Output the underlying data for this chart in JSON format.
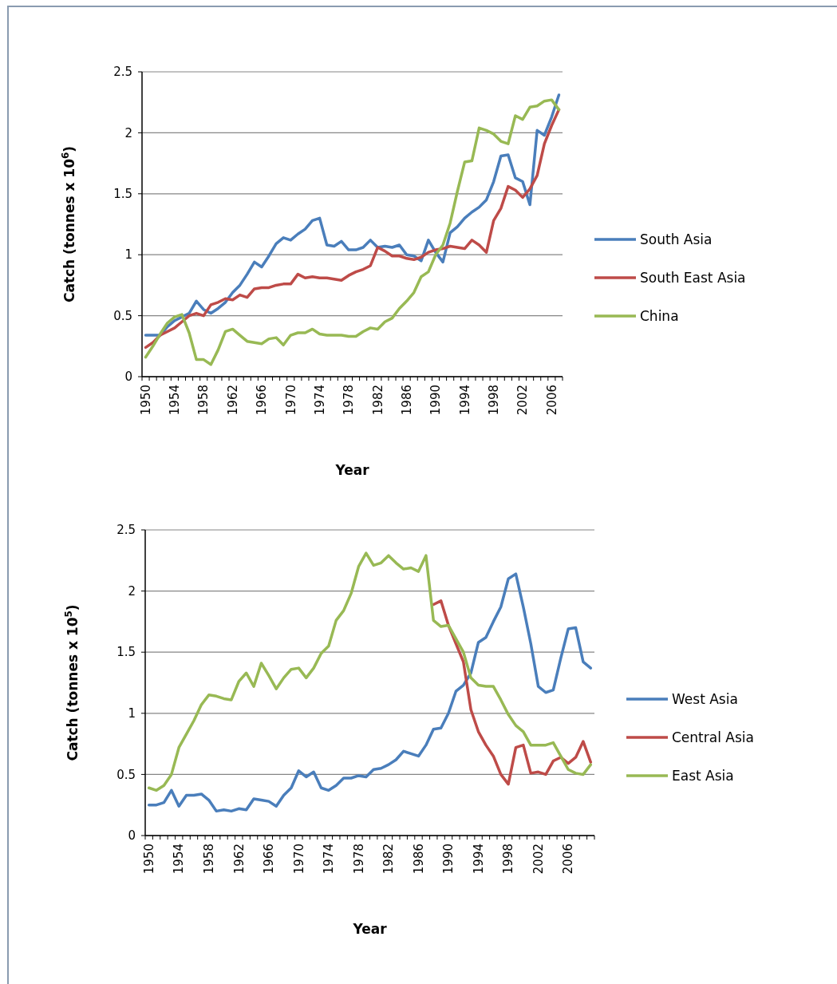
{
  "chart_data": [
    {
      "type": "line",
      "xlabel": "Year",
      "ylabel": "Catch (tonnes x 10$^{6}$)",
      "ylim": [
        0,
        2.5
      ],
      "yticks": [
        0,
        0.5,
        1,
        1.5,
        2,
        2.5
      ],
      "grid": "y",
      "legend": "right",
      "categories": [
        "1950",
        null,
        null,
        null,
        "1954",
        null,
        null,
        null,
        "1958",
        null,
        null,
        null,
        "1962",
        null,
        null,
        null,
        "1966",
        null,
        null,
        null,
        "1970",
        null,
        null,
        null,
        "1974",
        null,
        null,
        null,
        "1978",
        null,
        null,
        null,
        "1982",
        null,
        null,
        null,
        "1986",
        null,
        null,
        null,
        "1990",
        null,
        null,
        null,
        "1994",
        null,
        null,
        null,
        "1998",
        null,
        null,
        null,
        "2002",
        null,
        null,
        null,
        "2006",
        null
      ],
      "series": [
        {
          "name": "South Asia",
          "color": "#4a7ebb",
          "values": [
            0.34,
            0.34,
            0.34,
            0.41,
            0.46,
            0.49,
            0.52,
            0.62,
            0.55,
            0.52,
            0.56,
            0.61,
            0.69,
            0.75,
            0.84,
            0.94,
            0.9,
            0.99,
            1.09,
            1.14,
            1.12,
            1.17,
            1.21,
            1.28,
            1.3,
            1.08,
            1.07,
            1.11,
            1.04,
            1.04,
            1.06,
            1.12,
            1.06,
            1.07,
            1.06,
            1.08,
            1.0,
            0.99,
            0.95,
            1.12,
            1.02,
            0.94,
            1.18,
            1.23,
            1.3,
            1.35,
            1.39,
            1.45,
            1.6,
            1.81,
            1.82,
            1.63,
            1.6,
            1.41,
            2.02,
            1.98,
            2.13,
            2.31
          ]
        },
        {
          "name": "South East Asia",
          "color": "#be4b48",
          "values": [
            0.24,
            0.28,
            0.34,
            0.37,
            0.4,
            0.45,
            0.5,
            0.52,
            0.5,
            0.59,
            0.61,
            0.64,
            0.63,
            0.67,
            0.65,
            0.72,
            0.73,
            0.73,
            0.75,
            0.76,
            0.76,
            0.84,
            0.81,
            0.82,
            0.81,
            0.81,
            0.8,
            0.79,
            0.83,
            0.86,
            0.88,
            0.91,
            1.06,
            1.03,
            0.99,
            0.99,
            0.97,
            0.96,
            0.98,
            1.02,
            1.04,
            1.05,
            1.07,
            1.06,
            1.05,
            1.12,
            1.08,
            1.02,
            1.28,
            1.38,
            1.56,
            1.53,
            1.47,
            1.54,
            1.65,
            1.91,
            2.06,
            2.19
          ]
        },
        {
          "name": "China",
          "color": "#98b954",
          "values": [
            0.16,
            0.25,
            0.35,
            0.44,
            0.49,
            0.51,
            0.36,
            0.14,
            0.14,
            0.1,
            0.22,
            0.37,
            0.39,
            0.34,
            0.29,
            0.28,
            0.27,
            0.31,
            0.32,
            0.26,
            0.34,
            0.36,
            0.36,
            0.39,
            0.35,
            0.34,
            0.34,
            0.34,
            0.33,
            0.33,
            0.37,
            0.4,
            0.39,
            0.45,
            0.48,
            0.56,
            0.62,
            0.69,
            0.82,
            0.86,
            1.0,
            1.08,
            1.26,
            1.52,
            1.76,
            1.77,
            2.04,
            2.02,
            1.99,
            1.93,
            1.91,
            2.14,
            2.11,
            2.21,
            2.22,
            2.26,
            2.27,
            2.19
          ]
        }
      ]
    },
    {
      "type": "line",
      "xlabel": "Year",
      "ylabel": "Catch (tonnes x 10$^{5}$)",
      "ylim": [
        0,
        2.5
      ],
      "yticks": [
        0,
        0.5,
        1,
        1.5,
        2,
        2.5
      ],
      "grid": "y",
      "legend": "right",
      "categories": [
        "1950",
        null,
        null,
        null,
        "1954",
        null,
        null,
        null,
        "1958",
        null,
        null,
        null,
        "1962",
        null,
        null,
        null,
        "1966",
        null,
        null,
        null,
        "1970",
        null,
        null,
        null,
        "1974",
        null,
        null,
        null,
        "1978",
        null,
        null,
        null,
        "1982",
        null,
        null,
        null,
        "1986",
        null,
        null,
        null,
        "1990",
        null,
        null,
        null,
        "1994",
        null,
        null,
        null,
        "1998",
        null,
        null,
        null,
        "2002",
        null,
        null,
        null,
        "2006",
        null,
        null,
        null
      ],
      "series": [
        {
          "name": "West Asia",
          "color": "#4a7ebb",
          "values": [
            0.25,
            0.25,
            0.27,
            0.37,
            0.24,
            0.33,
            0.33,
            0.34,
            0.29,
            0.2,
            0.21,
            0.2,
            0.22,
            0.21,
            0.3,
            0.29,
            0.28,
            0.24,
            0.33,
            0.39,
            0.53,
            0.48,
            0.52,
            0.39,
            0.37,
            0.41,
            0.47,
            0.47,
            0.49,
            0.48,
            0.54,
            0.55,
            0.58,
            0.62,
            0.69,
            0.67,
            0.65,
            0.74,
            0.87,
            0.88,
            1.0,
            1.18,
            1.23,
            1.33,
            1.58,
            1.62,
            1.75,
            1.87,
            2.1,
            2.14,
            1.87,
            1.57,
            1.22,
            1.17,
            1.19,
            1.45,
            1.69,
            1.7,
            1.42,
            1.37
          ]
        },
        {
          "name": "Central Asia",
          "color": "#be4b48",
          "values": [
            null,
            null,
            null,
            null,
            null,
            null,
            null,
            null,
            null,
            null,
            null,
            null,
            null,
            null,
            null,
            null,
            null,
            null,
            null,
            null,
            null,
            null,
            null,
            null,
            null,
            null,
            null,
            null,
            null,
            null,
            null,
            null,
            null,
            null,
            null,
            null,
            null,
            null,
            1.89,
            1.92,
            1.72,
            1.57,
            1.42,
            1.03,
            0.85,
            0.74,
            0.65,
            0.5,
            0.42,
            0.72,
            0.74,
            0.51,
            0.52,
            0.5,
            0.61,
            0.64,
            0.59,
            0.64,
            0.77,
            0.6
          ]
        },
        {
          "name": "East Asia",
          "color": "#98b954",
          "values": [
            0.39,
            0.37,
            0.41,
            0.5,
            0.72,
            0.83,
            0.94,
            1.07,
            1.15,
            1.14,
            1.12,
            1.11,
            1.26,
            1.33,
            1.22,
            1.41,
            1.31,
            1.2,
            1.29,
            1.36,
            1.37,
            1.29,
            1.37,
            1.49,
            1.55,
            1.76,
            1.84,
            1.98,
            2.2,
            2.31,
            2.21,
            2.23,
            2.29,
            2.23,
            2.18,
            2.19,
            2.16,
            2.29,
            1.76,
            1.71,
            1.72,
            1.61,
            1.5,
            1.29,
            1.23,
            1.22,
            1.22,
            1.11,
            0.99,
            0.9,
            0.85,
            0.74,
            0.74,
            0.74,
            0.76,
            0.65,
            0.54,
            0.51,
            0.5,
            0.58
          ]
        }
      ]
    }
  ]
}
